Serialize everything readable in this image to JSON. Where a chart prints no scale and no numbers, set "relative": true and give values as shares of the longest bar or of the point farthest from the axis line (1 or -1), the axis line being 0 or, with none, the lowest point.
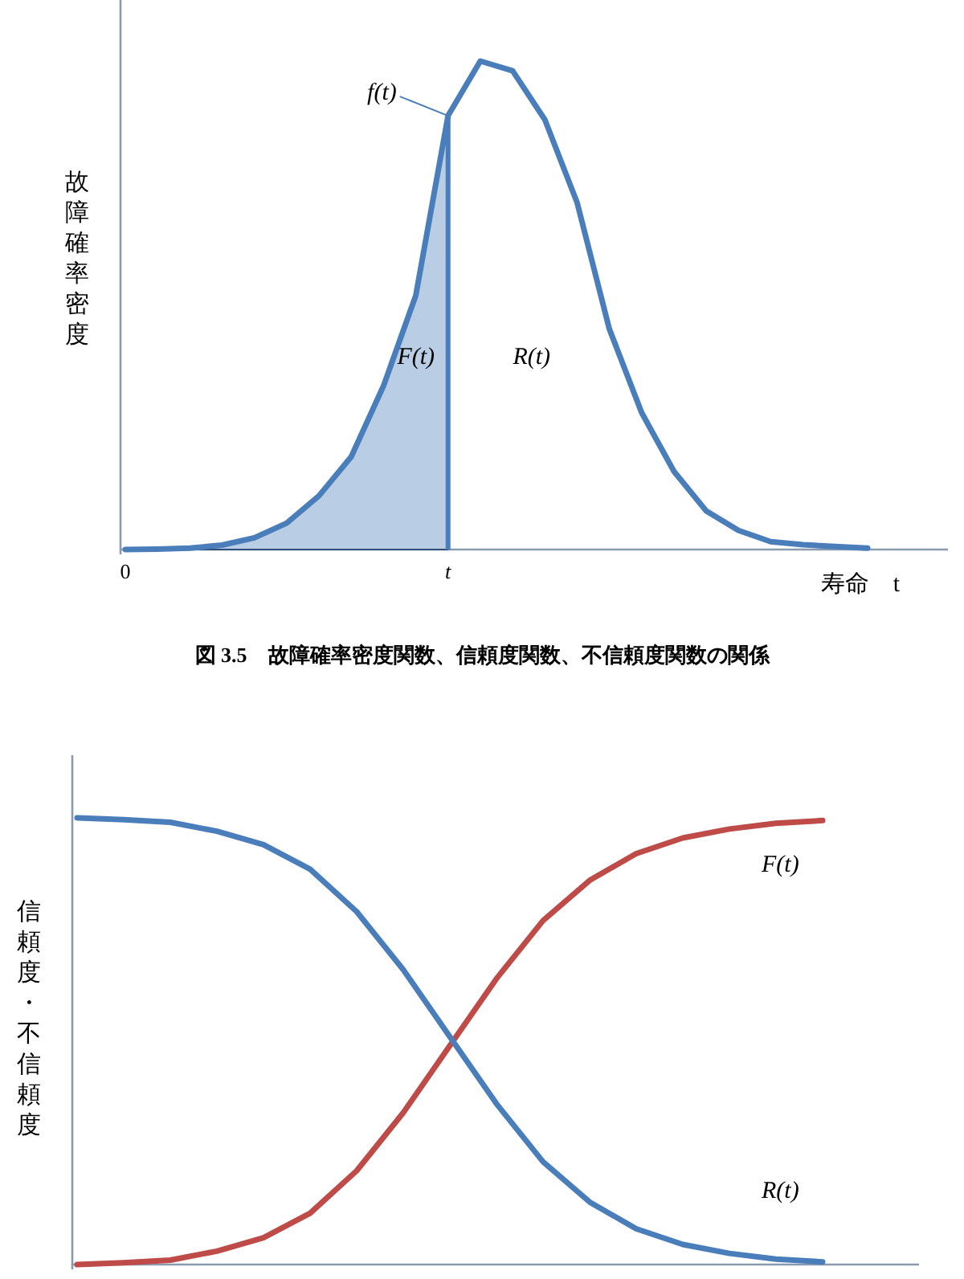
{
  "chart_data": [
    {
      "type": "line",
      "relative": true,
      "ylabel": "故障確率密度",
      "xlabel": "寿命　t",
      "tick_labels": "x",
      "categories": [
        "0",
        null,
        null,
        null,
        null,
        null,
        null,
        null,
        null,
        null,
        "t",
        null,
        null,
        null,
        null,
        null,
        null,
        null,
        null,
        null,
        null,
        null,
        null,
        null
      ],
      "series": [
        {
          "type": "area",
          "color": "#b9cde5",
          "values": [
            0,
            0.001,
            0.003,
            0.009,
            0.024,
            0.054,
            0.11,
            0.19,
            0.335,
            0.52,
            0.888,
            null,
            null,
            null,
            null,
            null,
            null,
            null,
            null,
            null,
            null,
            null,
            null,
            null
          ]
        },
        {
          "type": "line",
          "color": "#4a7ebb",
          "values": [
            0,
            0.001,
            0.003,
            0.009,
            0.024,
            0.054,
            0.11,
            0.19,
            0.335,
            0.52,
            0.888,
            1,
            0.98,
            0.88,
            0.71,
            0.451,
            0.28,
            0.16,
            0.079,
            0.039,
            0.016,
            0.01,
            0.006,
            0.003
          ]
        }
      ],
      "annotations": [
        {
          "text": "f(t)",
          "x": "t",
          "y": 0.888
        },
        "F(t)",
        "R(t)",
        "図 3.5　故障確率密度関数、信頼度関数、不信頼度関数の関係"
      ]
    },
    {
      "type": "line",
      "relative": true,
      "ylabel": "信頼度・不信頼度",
      "tick_labels": false,
      "categories": [
        null,
        null,
        null,
        null,
        null,
        null,
        null,
        null,
        null,
        null,
        null,
        null,
        null,
        null,
        null,
        null,
        null
      ],
      "series": [
        {
          "name": "F(t)",
          "color": "#be4b48",
          "values": [
            0,
            0.004,
            0.01,
            0.03,
            0.06,
            0.115,
            0.21,
            0.34,
            0.49,
            0.64,
            0.77,
            0.86,
            0.92,
            0.955,
            0.975,
            0.988,
            0.994
          ]
        },
        {
          "name": "R(t)",
          "color": "#4a7ebb",
          "values": [
            1,
            0.996,
            0.99,
            0.97,
            0.94,
            0.885,
            0.79,
            0.66,
            0.51,
            0.36,
            0.23,
            0.14,
            0.08,
            0.045,
            0.025,
            0.012,
            0.006
          ]
        }
      ]
    }
  ]
}
